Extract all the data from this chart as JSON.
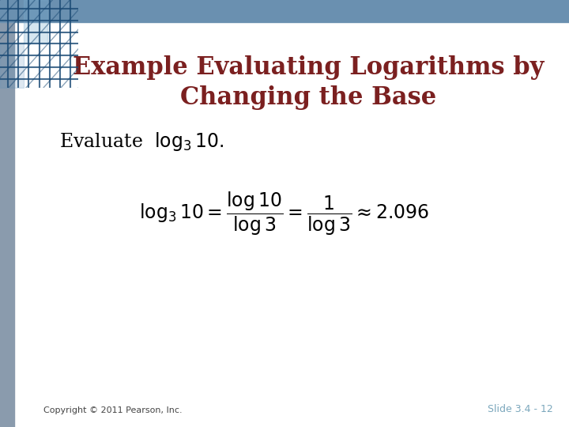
{
  "title_line1": "Example Evaluating Logarithms by",
  "title_line2": "Changing the Base",
  "title_color": "#7B2020",
  "title_fontsize": 22,
  "bg_color": "#FFFFFF",
  "left_bar_color": "#8A9BAD",
  "corner_color1": "#4A7BA5",
  "corner_color2": "#2C5F8A",
  "top_band_color": "#6A90B0",
  "evaluate_text": "Evaluate  $\\log_3 10.$",
  "evaluate_fontsize": 17,
  "formula_fontsize": 17,
  "formula": "$\\log_3 10 = \\dfrac{\\log 10}{\\log 3} = \\dfrac{1}{\\log 3} \\approx 2.096$",
  "copyright_text": "Copyright © 2011 Pearson, Inc.",
  "slide_text": "Slide 3.4 - 12",
  "footer_color": "#7BA7BC",
  "footer_fontsize": 9,
  "copyright_fontsize": 8,
  "copyright_color": "#444444"
}
